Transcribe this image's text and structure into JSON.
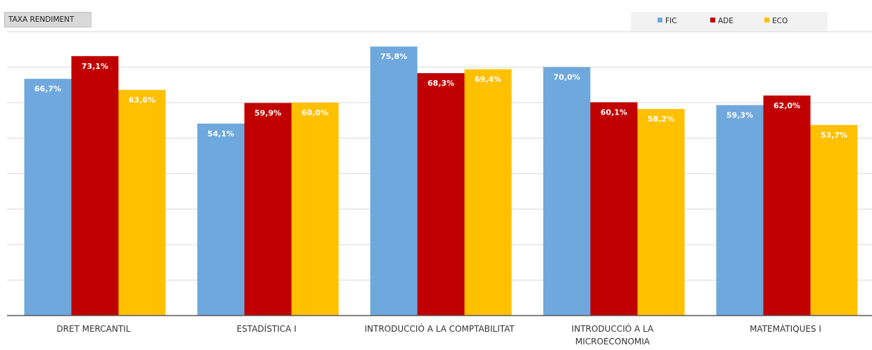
{
  "chart_data": {
    "type": "bar",
    "title": "TAXA RENDIMENT",
    "categories": [
      [
        "DRET MERCANTIL"
      ],
      [
        "ESTADÍSTICA I"
      ],
      [
        "INTRODUCCIÓ A LA COMPTABILITAT"
      ],
      [
        "INTRODUCCIÓ A LA",
        "MICROECONOMIA"
      ],
      [
        "MATEMÀTIQUES I"
      ]
    ],
    "series": [
      {
        "name": "FIC",
        "color": "#6fa8dc",
        "values": [
          66.7,
          54.1,
          75.8,
          70.0,
          59.3
        ],
        "labels": [
          "66,7%",
          "54,1%",
          "75,8%",
          "70,0%",
          "59,3%"
        ]
      },
      {
        "name": "ADE",
        "color": "#c00000",
        "values": [
          73.1,
          59.9,
          68.3,
          60.1,
          62.0
        ],
        "labels": [
          "73,1%",
          "59,9%",
          "68,3%",
          "60,1%",
          "62,0%"
        ]
      },
      {
        "name": "ECO",
        "color": "#ffc000",
        "values": [
          63.6,
          60.0,
          69.4,
          58.2,
          53.7
        ],
        "labels": [
          "63,6%",
          "60,0%",
          "69,4%",
          "58,2%",
          "53,7%"
        ]
      }
    ],
    "ylim": [
      0,
      80
    ],
    "grid": true,
    "legend_position": "top-right",
    "xlabel": "",
    "ylabel": ""
  }
}
